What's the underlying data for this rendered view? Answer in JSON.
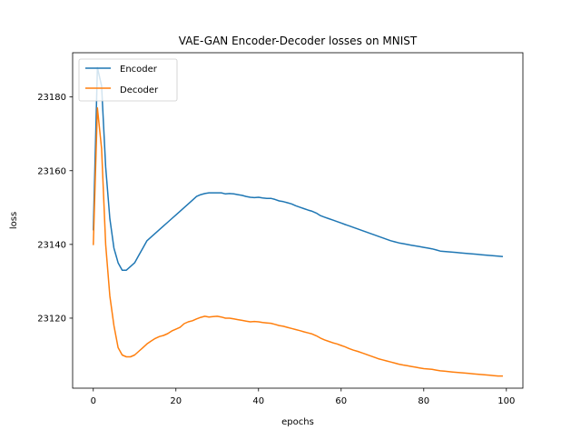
{
  "chart_data": {
    "type": "line",
    "title": "VAE-GAN Encoder-Decoder losses on MNIST",
    "xlabel": "epochs",
    "ylabel": "loss",
    "xlim": [
      -5,
      104
    ],
    "ylim": [
      23101,
      23192
    ],
    "xticks": [
      0,
      20,
      40,
      60,
      80,
      100
    ],
    "yticks": [
      23120,
      23140,
      23160,
      23180
    ],
    "grid": false,
    "legend_position": "upper-left",
    "series": [
      {
        "name": "Encoder",
        "color": "#1f77b4",
        "x": [
          0,
          1,
          2,
          3,
          4,
          5,
          6,
          7,
          8,
          9,
          10,
          11,
          12,
          13,
          14,
          15,
          16,
          17,
          18,
          19,
          20,
          21,
          22,
          23,
          24,
          25,
          26,
          27,
          28,
          29,
          30,
          31,
          32,
          33,
          34,
          35,
          36,
          37,
          38,
          39,
          40,
          41,
          42,
          43,
          44,
          45,
          46,
          47,
          48,
          49,
          50,
          51,
          52,
          53,
          54,
          55,
          56,
          57,
          58,
          59,
          60,
          61,
          62,
          63,
          64,
          65,
          66,
          67,
          68,
          69,
          70,
          71,
          72,
          73,
          74,
          75,
          76,
          77,
          78,
          79,
          80,
          81,
          82,
          83,
          84,
          85,
          86,
          87,
          88,
          89,
          90,
          91,
          92,
          93,
          94,
          95,
          96,
          97,
          98,
          99
        ],
        "y": [
          23144,
          23188,
          23183,
          23161,
          23147,
          23139,
          23135,
          23133,
          23133,
          23134,
          23135,
          23137,
          23139,
          23141,
          23142,
          23143,
          23144,
          23145,
          23146,
          23147,
          23148,
          23149,
          23150,
          23151,
          23152,
          23153,
          23153.5,
          23153.8,
          23154,
          23154,
          23154,
          23154,
          23153.7,
          23153.8,
          23153.7,
          23153.5,
          23153.3,
          23153,
          23152.8,
          23152.7,
          23152.8,
          23152.6,
          23152.5,
          23152.5,
          23152.2,
          23151.8,
          23151.6,
          23151.3,
          23151,
          23150.5,
          23150.1,
          23149.7,
          23149.3,
          23149,
          23148.5,
          23147.8,
          23147.4,
          23147,
          23146.6,
          23146.2,
          23145.8,
          23145.4,
          23145,
          23144.6,
          23144.2,
          23143.8,
          23143.4,
          23143,
          23142.6,
          23142.2,
          23141.8,
          23141.4,
          23141,
          23140.7,
          23140.4,
          23140.2,
          23140,
          23139.8,
          23139.6,
          23139.4,
          23139.2,
          23139,
          23138.8,
          23138.5,
          23138.2,
          23138.1,
          23138,
          23137.9,
          23137.8,
          23137.7,
          23137.6,
          23137.5,
          23137.4,
          23137.3,
          23137.2,
          23137.1,
          23137,
          23136.9,
          23136.8,
          23136.7
        ]
      },
      {
        "name": "Decoder",
        "color": "#ff7f0e",
        "x": [
          0,
          1,
          2,
          3,
          4,
          5,
          6,
          7,
          8,
          9,
          10,
          11,
          12,
          13,
          14,
          15,
          16,
          17,
          18,
          19,
          20,
          21,
          22,
          23,
          24,
          25,
          26,
          27,
          28,
          29,
          30,
          31,
          32,
          33,
          34,
          35,
          36,
          37,
          38,
          39,
          40,
          41,
          42,
          43,
          44,
          45,
          46,
          47,
          48,
          49,
          50,
          51,
          52,
          53,
          54,
          55,
          56,
          57,
          58,
          59,
          60,
          61,
          62,
          63,
          64,
          65,
          66,
          67,
          68,
          69,
          70,
          71,
          72,
          73,
          74,
          75,
          76,
          77,
          78,
          79,
          80,
          81,
          82,
          83,
          84,
          85,
          86,
          87,
          88,
          89,
          90,
          91,
          92,
          93,
          94,
          95,
          96,
          97,
          98,
          99
        ],
        "y": [
          23140,
          23177,
          23166,
          23140,
          23126,
          23118,
          23112,
          23110,
          23109.5,
          23109.5,
          23110,
          23111,
          23112,
          23113,
          23113.8,
          23114.5,
          23115,
          23115.3,
          23115.8,
          23116.5,
          23117,
          23117.5,
          23118.5,
          23119,
          23119.3,
          23119.8,
          23120.2,
          23120.5,
          23120.3,
          23120.4,
          23120.5,
          23120.3,
          23120,
          23120,
          23119.8,
          23119.6,
          23119.4,
          23119.2,
          23119,
          23119.1,
          23119,
          23118.8,
          23118.7,
          23118.6,
          23118.3,
          23118,
          23117.8,
          23117.5,
          23117.2,
          23116.9,
          23116.6,
          23116.3,
          23116,
          23115.7,
          23115.2,
          23114.6,
          23114.1,
          23113.7,
          23113.3,
          23113,
          23112.6,
          23112.2,
          23111.7,
          23111.3,
          23111,
          23110.6,
          23110.2,
          23109.8,
          23109.4,
          23109,
          23108.7,
          23108.4,
          23108.1,
          23107.8,
          23107.5,
          23107.3,
          23107.1,
          23106.9,
          23106.7,
          23106.5,
          23106.3,
          23106.2,
          23106.1,
          23105.9,
          23105.7,
          23105.6,
          23105.5,
          23105.4,
          23105.3,
          23105.2,
          23105.1,
          23105,
          23104.9,
          23104.8,
          23104.7,
          23104.6,
          23104.5,
          23104.4,
          23104.3,
          23104.3
        ]
      }
    ]
  }
}
